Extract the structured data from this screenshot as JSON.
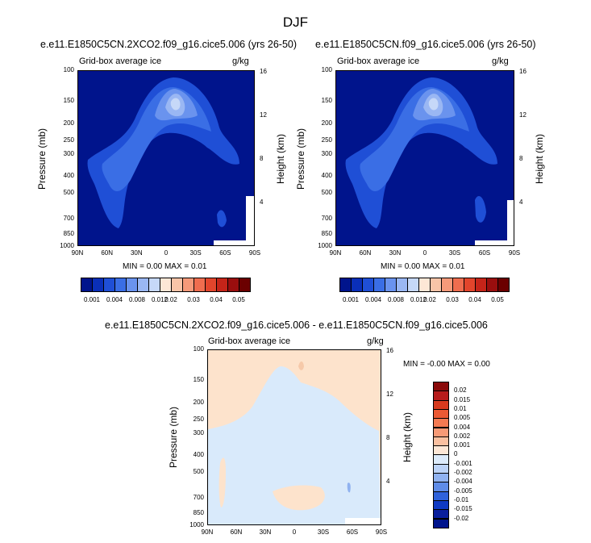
{
  "main_title": "DJF",
  "colors": {
    "dark_navy": "#00148c",
    "pale_blue": "#d9eafb",
    "pale_peach": "#fde3cc",
    "peach": "#f6c9a9"
  },
  "chart_data": [
    {
      "type": "heatmap",
      "title": "e.e11.E1850C5CN.2XCO2.f09_g16.cice5.006 (yrs 26-50)",
      "subtitle_left": "Grid-box average ice",
      "subtitle_right": "g/kg",
      "xlabel": "",
      "ylabel": "Pressure (mb)",
      "ylabel_right": "Height (km)",
      "x_ticks": [
        "90N",
        "60N",
        "30N",
        "0",
        "30S",
        "60S",
        "90S"
      ],
      "y_ticks": [
        "100",
        "150",
        "200",
        "250",
        "300",
        "400",
        "500",
        "700",
        "850",
        "1000"
      ],
      "y_right_ticks": [
        "16",
        "12",
        "8",
        "4"
      ],
      "min_max": "MIN =  0.00  MAX =  0.01",
      "colorbar_labels": [
        "0.001",
        "0.004",
        "0.008",
        "0.012",
        "0.02",
        "0.03",
        "0.04",
        "0.05"
      ],
      "colorbar_colors": [
        "#00148c",
        "#0a2fb8",
        "#1f4fd6",
        "#3a6ee5",
        "#6a93ee",
        "#9ab7f3",
        "#c6d8f8",
        "#fde7d6",
        "#f8c4a8",
        "#f59a7a",
        "#ef6d4f",
        "#e2452c",
        "#c52419",
        "#9a0e0e",
        "#6b0000"
      ]
    },
    {
      "type": "heatmap",
      "title": "e.e11.E1850C5CN.f09_g16.cice5.006 (yrs 26-50)",
      "subtitle_left": "Grid-box average ice",
      "subtitle_right": "g/kg",
      "xlabel": "",
      "ylabel": "Pressure (mb)",
      "ylabel_right": "Height (km)",
      "x_ticks": [
        "90N",
        "60N",
        "30N",
        "0",
        "30S",
        "60S",
        "90S"
      ],
      "y_ticks": [
        "100",
        "150",
        "200",
        "250",
        "300",
        "400",
        "500",
        "700",
        "850",
        "1000"
      ],
      "y_right_ticks": [
        "16",
        "12",
        "8",
        "4"
      ],
      "min_max": "MIN =  0.00  MAX =  0.01",
      "colorbar_labels": [
        "0.001",
        "0.004",
        "0.008",
        "0.012",
        "0.02",
        "0.03",
        "0.04",
        "0.05"
      ]
    },
    {
      "type": "heatmap",
      "title": "e.e11.E1850C5CN.2XCO2.f09_g16.cice5.006 - e.e11.E1850C5CN.f09_g16.cice5.006",
      "subtitle_left": "Grid-box average ice",
      "subtitle_right": "g/kg",
      "xlabel": "",
      "ylabel": "Pressure (mb)",
      "ylabel_right": "Height (km)",
      "x_ticks": [
        "90N",
        "60N",
        "30N",
        "0",
        "30S",
        "60S",
        "90S"
      ],
      "y_ticks": [
        "100",
        "150",
        "200",
        "250",
        "300",
        "400",
        "500",
        "700",
        "850",
        "1000"
      ],
      "y_right_ticks": [
        "16",
        "12",
        "8",
        "4"
      ],
      "min_max": "MIN = -0.00  MAX =  0.00",
      "colorbar_labels": [
        "0.02",
        "0.015",
        "0.01",
        "0.005",
        "0.004",
        "0.002",
        "0.001",
        "0",
        "-0.001",
        "-0.002",
        "-0.004",
        "-0.005",
        "-0.01",
        "-0.015",
        "-0.02"
      ],
      "colorbar_colors": [
        "#8a0a0a",
        "#b71c1c",
        "#d83a1e",
        "#ec5a34",
        "#f47a52",
        "#f79a76",
        "#fac0a0",
        "#fde7d6",
        "#dcebfb",
        "#bcd3f7",
        "#90b2f0",
        "#5f8ce8",
        "#2f62db",
        "#0f3ac4",
        "#0a1f9c",
        "#00148c"
      ]
    }
  ]
}
